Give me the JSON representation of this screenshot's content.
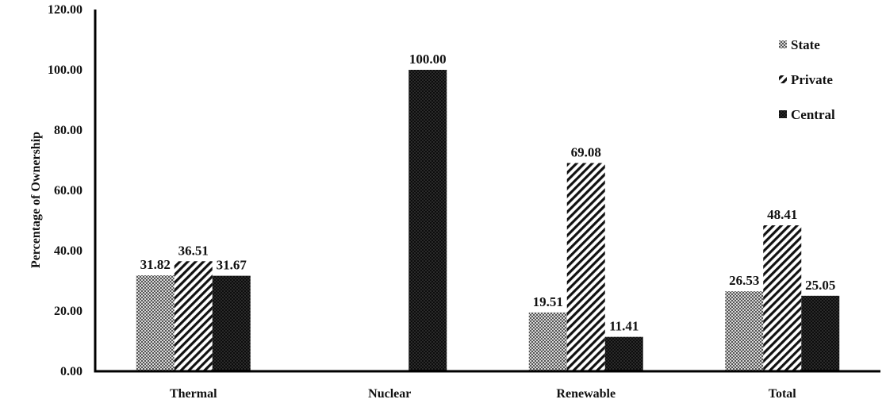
{
  "chart_data": {
    "type": "bar",
    "ylabel": "Percentage of Ownership",
    "xlabel": "",
    "ylim": [
      0,
      120
    ],
    "yticks": [
      "0.00",
      "20.00",
      "40.00",
      "60.00",
      "80.00",
      "100.00",
      "120.00"
    ],
    "categories": [
      "Thermal",
      "Nuclear",
      "Renewable",
      "Total"
    ],
    "series": [
      {
        "name": "State",
        "pattern": "checker",
        "values": [
          31.82,
          null,
          19.51,
          26.53
        ],
        "labels": [
          "31.82",
          "",
          "19.51",
          "26.53"
        ]
      },
      {
        "name": "Private",
        "pattern": "diagonal",
        "values": [
          36.51,
          null,
          69.08,
          48.41
        ],
        "labels": [
          "36.51",
          "",
          "69.08",
          "48.41"
        ]
      },
      {
        "name": "Central",
        "pattern": "dotted-dark",
        "values": [
          31.67,
          100.0,
          11.41,
          25.05
        ],
        "labels": [
          "31.67",
          "100.00",
          "11.41",
          "25.05"
        ]
      }
    ],
    "grid": false,
    "legend_position": "top-right",
    "colors": {
      "axis": "#000000",
      "text": "#111111"
    }
  }
}
